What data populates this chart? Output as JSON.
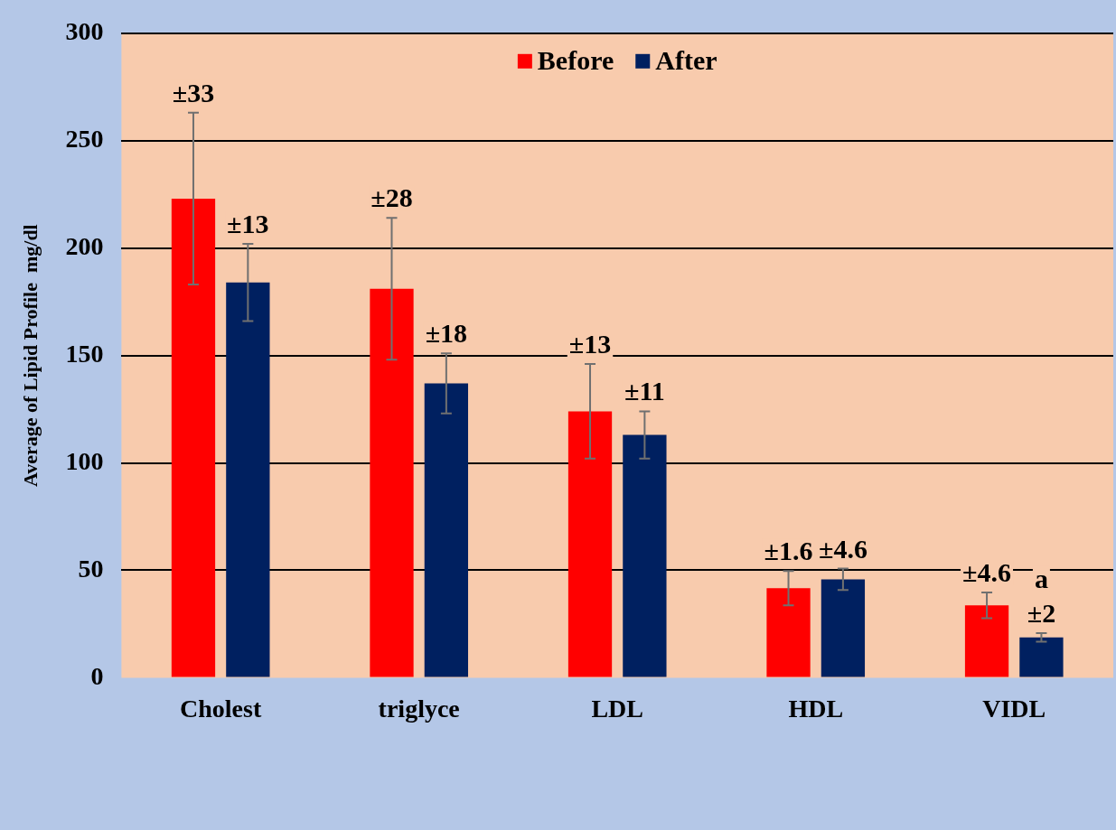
{
  "chart_data": {
    "type": "bar",
    "ylabel": "Average of Lipid Profile  mg/dl",
    "categories": [
      "Cholest",
      "triglyce",
      "LDL",
      "HDL",
      "VIDL"
    ],
    "series": [
      {
        "name": "Before",
        "color": "#ff0000",
        "values": [
          223,
          181,
          124,
          41.7,
          33.7
        ],
        "errors": [
          40,
          33,
          22,
          8,
          6
        ]
      },
      {
        "name": "After",
        "color": "#002060",
        "values": [
          184,
          137,
          113,
          45.8,
          18.8
        ],
        "errors": [
          18,
          14,
          11,
          5,
          2
        ]
      }
    ],
    "ylim": [
      0,
      300
    ],
    "yticks": [
      0,
      50,
      100,
      150,
      200,
      250,
      300
    ],
    "grid": "y",
    "legend": "top",
    "annotations": [
      "±33",
      "±13",
      "±28",
      "±18",
      "±13",
      "±11",
      "±1.6",
      "±4.6",
      "±4.6",
      "a\n±2"
    ]
  }
}
